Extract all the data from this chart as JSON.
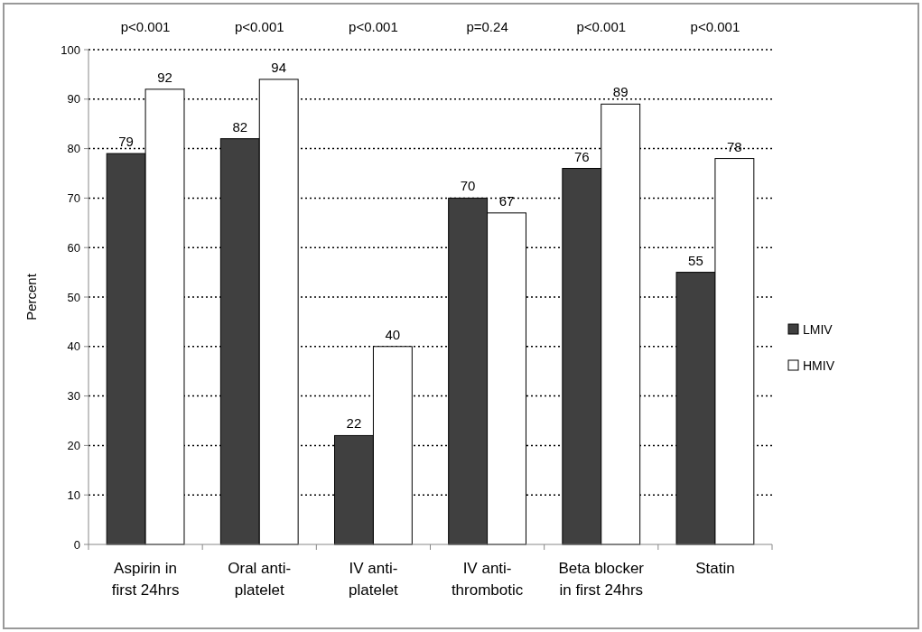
{
  "chart_data": {
    "type": "bar",
    "ylabel": "Percent",
    "categories": [
      "Aspirin in\nfirst 24hrs",
      "Oral anti-\nplatelet",
      "IV anti-\nplatelet",
      "IV anti-\nthrombotic",
      "Beta blocker\nin first 24hrs",
      "Statin"
    ],
    "series": [
      {
        "name": "LMIV",
        "color": "#404040",
        "values": [
          79,
          82,
          22,
          70,
          76,
          55
        ]
      },
      {
        "name": "HMIV",
        "color": "#ffffff",
        "values": [
          92,
          94,
          40,
          67,
          89,
          78
        ]
      }
    ],
    "ylim": [
      0,
      100
    ],
    "yticks": [
      0,
      10,
      20,
      30,
      40,
      50,
      60,
      70,
      80,
      90,
      100
    ],
    "grid": "y",
    "legend": "right",
    "data_labels": true,
    "annotations": [
      "p<0.001",
      "p<0.001",
      "p<0.001",
      "p=0.24",
      "p<0.001",
      "p<0.001"
    ]
  }
}
